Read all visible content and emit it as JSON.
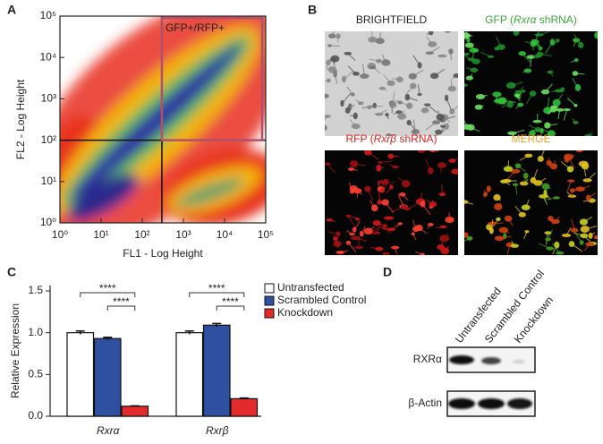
{
  "chart_data": [
    {
      "type": "density",
      "panel": "A",
      "xlabel": "FL1 - Log Height",
      "ylabel": "FL2 - Log Height",
      "log_scale": true,
      "xlim": [
        1,
        100000
      ],
      "ylim": [
        1,
        100000
      ],
      "xticks": [
        {
          "value": 1,
          "label": "10⁰"
        },
        {
          "value": 10,
          "label": "10¹"
        },
        {
          "value": 100,
          "label": "10²"
        },
        {
          "value": 1000,
          "label": "10³"
        },
        {
          "value": 10000,
          "label": "10⁴"
        },
        {
          "value": 100000,
          "label": "10⁵"
        }
      ],
      "yticks": [
        {
          "value": 1,
          "label": "10⁰"
        },
        {
          "value": 10,
          "label": "10¹"
        },
        {
          "value": 100,
          "label": "10²"
        },
        {
          "value": 1000,
          "label": "10³"
        },
        {
          "value": 10000,
          "label": "10⁴"
        },
        {
          "value": 100000,
          "label": "10⁵"
        }
      ],
      "quadrant": {
        "x": 300,
        "y": 100
      },
      "gate": {
        "label": "GFP+/RFP+",
        "color": "#b0506a"
      }
    },
    {
      "type": "bar",
      "panel": "C",
      "ylabel": "Relative Expression",
      "categories": [
        "Rxrα",
        "Rxrβ"
      ],
      "series": [
        {
          "name": "Untransfected",
          "color": "#ffffff",
          "values": [
            1.0,
            1.0
          ],
          "errors": [
            0.02,
            0.02
          ]
        },
        {
          "name": "Scrambled Control",
          "color": "#2f4fa0",
          "values": [
            0.93,
            1.09
          ],
          "errors": [
            0.015,
            0.02
          ]
        },
        {
          "name": "Knockdown",
          "color": "#e32b2b",
          "values": [
            0.12,
            0.21
          ],
          "errors": [
            0.005,
            0.008
          ]
        }
      ],
      "ylim": [
        0,
        1.5
      ],
      "yticks": [
        {
          "value": 0,
          "label": "0.0"
        },
        0.5,
        {
          "value": 1,
          "label": "1.0"
        },
        1.5
      ],
      "annotations": [
        "****",
        "****",
        "****",
        "****"
      ]
    }
  ],
  "micrographs": {
    "panel": "B",
    "tiles": [
      {
        "parts": [
          "BRIGHTFIELD"
        ],
        "color": "#222222"
      },
      {
        "parts": [
          "GFP (",
          "Rxrα",
          " shRNA)"
        ],
        "color": "#3aa83a"
      },
      {
        "parts": [
          "RFP (",
          "Rxrβ",
          " shRNA)"
        ],
        "color": "#e02020"
      },
      {
        "parts": [
          "MERGE"
        ],
        "color": "#f0a020"
      }
    ]
  },
  "western_blot": {
    "panel": "D",
    "lanes": [
      "Untransfected",
      "Scrambled Control",
      "Knockdown"
    ],
    "rows": [
      "RXRα",
      "β-Actin"
    ]
  }
}
